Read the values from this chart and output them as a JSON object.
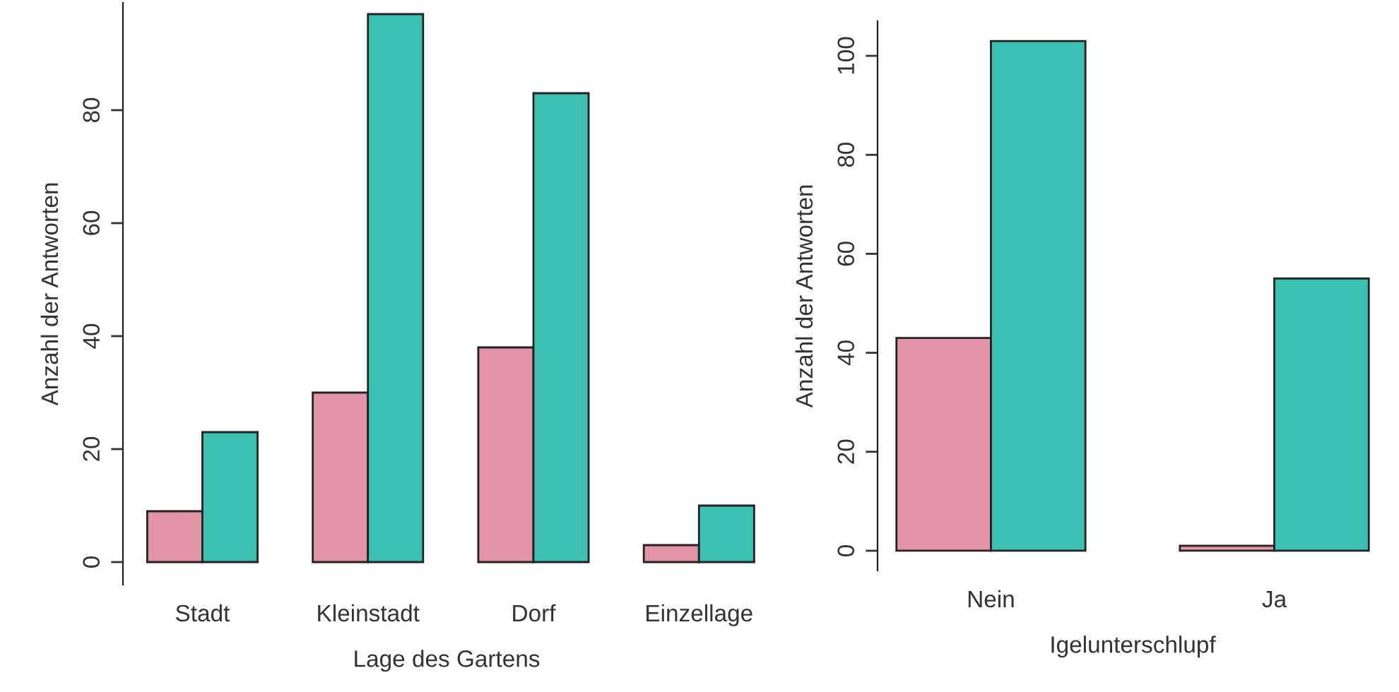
{
  "chart_data": [
    {
      "type": "bar",
      "xlabel": "Lage des Gartens",
      "ylabel": "Anzahl der Antworten",
      "categories": [
        "Stadt",
        "Kleinstadt",
        "Dorf",
        "Einzellage"
      ],
      "series": [
        {
          "color": "#e293a6",
          "values": [
            9,
            30,
            38,
            3
          ]
        },
        {
          "color": "#3bbfb1",
          "values": [
            23,
            97,
            83,
            10
          ]
        }
      ],
      "ylim": [
        -4,
        99
      ],
      "yticks": [
        0,
        20,
        40,
        60,
        80
      ],
      "grid": false,
      "legend": false
    },
    {
      "type": "bar",
      "xlabel": "Igelunterschlupf",
      "ylabel": "Anzahl der Antworten",
      "categories": [
        "Nein",
        "Ja"
      ],
      "series": [
        {
          "color": "#e293a6",
          "values": [
            43,
            1
          ]
        },
        {
          "color": "#3bbfb1",
          "values": [
            103,
            55
          ]
        }
      ],
      "ylim": [
        -4,
        107
      ],
      "yticks": [
        0,
        20,
        40,
        60,
        80,
        100
      ],
      "grid": false,
      "legend": false
    }
  ]
}
